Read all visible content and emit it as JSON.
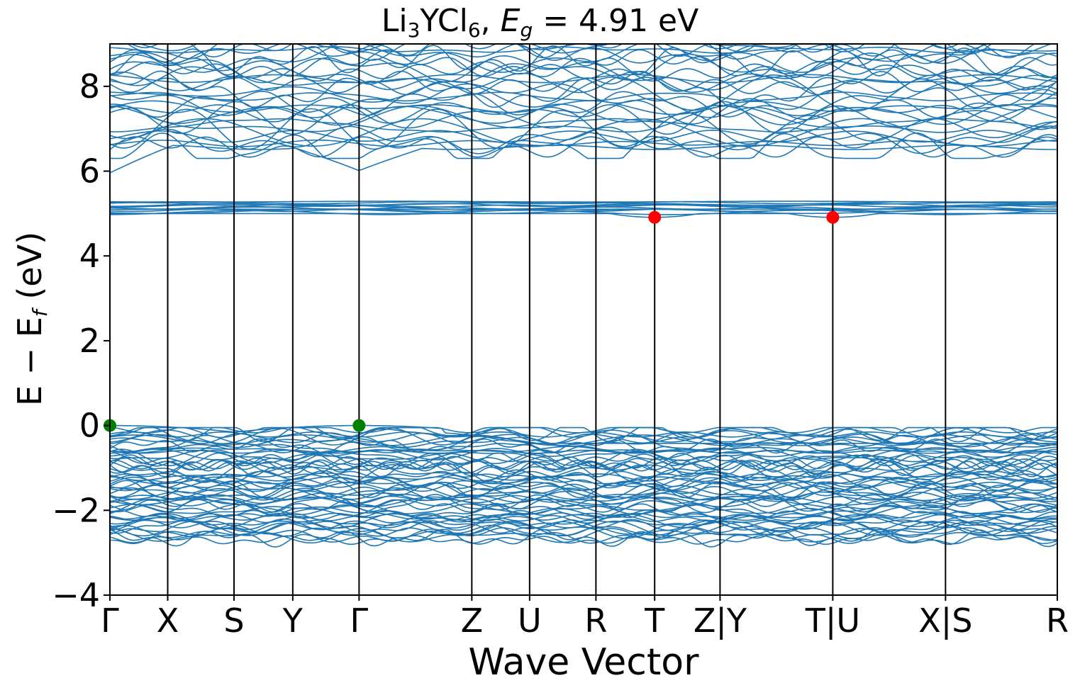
{
  "chart_data": {
    "type": "line",
    "title": {
      "formula_parts": [
        "Li",
        "3",
        "YCl",
        "6",
        ", "
      ],
      "gap_symbol": "E",
      "gap_subscript": "g",
      "gap_value": " = 4.91 eV"
    },
    "xlabel": "Wave Vector",
    "ylabel": {
      "main": "E − E",
      "sub": "f",
      "unit": " (eV)"
    },
    "ylim": [
      -4,
      9
    ],
    "yticks": [
      {
        "value": 8,
        "label": "8"
      },
      {
        "value": 6,
        "label": "6"
      },
      {
        "value": 4,
        "label": "4"
      },
      {
        "value": 2,
        "label": "2"
      },
      {
        "value": 0,
        "label": "0"
      },
      {
        "value": -2,
        "label": "−2"
      },
      {
        "value": -4,
        "label": "−4"
      }
    ],
    "kpath_ticks": [
      {
        "k": 0,
        "label": "Γ"
      },
      {
        "k": 0.061,
        "label": "X"
      },
      {
        "k": 0.131,
        "label": "S"
      },
      {
        "k": 0.193,
        "label": "Y"
      },
      {
        "k": 0.263,
        "label": "Γ"
      },
      {
        "k": 0.382,
        "label": "Z"
      },
      {
        "k": 0.443,
        "label": "U"
      },
      {
        "k": 0.513,
        "label": "R"
      },
      {
        "k": 0.575,
        "label": "T"
      },
      {
        "k": 0.644,
        "label": "Z|Y"
      },
      {
        "k": 0.763,
        "label": "T|U"
      },
      {
        "k": 0.882,
        "label": "X|S"
      },
      {
        "k": 1.0,
        "label": "R"
      }
    ],
    "band_color": "#1f77b4",
    "vbm_points": [
      {
        "k": 0,
        "E": 0.0
      },
      {
        "k": 0.263,
        "E": 0.0
      }
    ],
    "cbm_points": [
      {
        "k": 0.575,
        "E": 4.91
      },
      {
        "k": 0.763,
        "E": 4.91
      }
    ],
    "vbm_color": "#008000",
    "cbm_color": "#ff0000",
    "bands": {
      "valence": {
        "count": 60,
        "min": -2.7,
        "max": 0.0
      },
      "conduction_flat": {
        "count": 12,
        "min": 4.91,
        "max": 5.35
      },
      "conduction_upper": {
        "count": 34,
        "min": 5.96,
        "max": 9.0
      }
    },
    "grid": false
  }
}
